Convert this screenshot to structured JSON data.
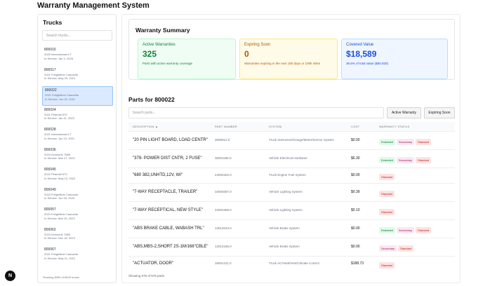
{
  "app": {
    "title": "Warranty Management System"
  },
  "sidebar": {
    "title": "Trucks",
    "search_placeholder": "Search trucks...",
    "footer": "Showing 8000 of 8000 trucks",
    "trucks": [
      {
        "id": "800016",
        "model": "2025 International ILT",
        "service": "In Service: Jan 2, 2025",
        "selected": false
      },
      {
        "id": "800017",
        "model": "2021 Freightliner Cascadia",
        "service": "In Service: May 29, 2021",
        "selected": false
      },
      {
        "id": "800022",
        "model": "2021 Freightliner Cascadia",
        "service": "In Service: Jun 22, 2021",
        "selected": true
      },
      {
        "id": "800024",
        "model": "2021 Peterbilt 579",
        "service": "In Service: Jan 11, 2023",
        "selected": false
      },
      {
        "id": "800028",
        "model": "2021 International ILT",
        "service": "In Service: Jun 13, 2021",
        "selected": false
      },
      {
        "id": "800036",
        "model": "2024 Kenworth T680",
        "service": "In Service: Mar 27, 2024",
        "selected": false
      },
      {
        "id": "800045",
        "model": "2022 Peterbilt 579",
        "service": "In Service: May 13, 2022",
        "selected": false
      },
      {
        "id": "800049",
        "model": "2023 Freightliner Cascadia",
        "service": "In Service: Jun 16, 2023",
        "selected": false
      },
      {
        "id": "800057",
        "model": "2023 Freightliner Cascadia",
        "service": "In Service: Mar 15, 2023",
        "selected": false
      },
      {
        "id": "800062",
        "model": "2023 Kenworth T680",
        "service": "In Service: Nov 16, 2023",
        "selected": false
      },
      {
        "id": "800067",
        "model": "2021 Freightliner Cascadia",
        "service": "In Service: May 21, 2021",
        "selected": false
      }
    ]
  },
  "summary": {
    "title": "Warranty Summary",
    "cards": [
      {
        "title": "Active Warranties",
        "value": "325",
        "desc": "Parts with active warranty coverage",
        "color": "#15803d"
      },
      {
        "title": "Expiring Soon",
        "value": "0",
        "desc": "Warranties expiring in the next 180 days or 100k miles",
        "color": "#b45309"
      },
      {
        "title": "Covered Value",
        "value": "$18,589",
        "desc": "36.6% of total value ($50,920)",
        "color": "#1d4ed8"
      }
    ]
  },
  "parts": {
    "title": "Parts for 800022",
    "search_placeholder": "Search parts...",
    "btn_active": "Active Warranty",
    "btn_expiring": "Expiring Soon",
    "footer": "Showing 578 of 578 parts",
    "columns": [
      "DESCRIPTION ▲",
      "PART NUMBER",
      "SYSTEM",
      "COST",
      "WARRANTY STATUS"
    ],
    "rows": [
      {
        "desc": "\"20 PIN LIGHT BOARD, LOAD CENTR\"",
        "pn": "3006012.0",
        "sys": "Truck Instrument/Gauge/Meter/Sensor System",
        "cost": "$0.00",
        "badges": [
          "Extended",
          "Secondary",
          "Standard"
        ]
      },
      {
        "desc": "\"379- POWER DIST CNTR, 2 FUSE\"",
        "pn": "35001188.0",
        "sys": "Vehicle Electrical Hardware",
        "cost": "$6.30",
        "badges": [
          "Extended",
          "Secondary",
          "Standard"
        ]
      },
      {
        "desc": "\"680 382,UNHTD,12V, WI\"",
        "pn": "44002262.0",
        "sys": "Truck Engine Fuel System",
        "cost": "$0.00",
        "badges": [
          "Standard"
        ]
      },
      {
        "desc": "\"7-WAY RECEPTACLE, TRAILER\"",
        "pn": "34004087.0",
        "sys": "Vehicle Lighting System",
        "cost": "$0.39",
        "badges": [
          "Standard"
        ]
      },
      {
        "desc": "\"7-WAY RECEPTICAL, NEW STYLE\"",
        "pn": "34004369.0",
        "sys": "Vehicle Lighting System",
        "cost": "$0.10",
        "badges": [
          "Standard"
        ]
      },
      {
        "desc": "\"ABS BRAKE CABLE, WABASH TRL\"",
        "pn": "13012043.0",
        "sys": "Vehicle Brake System",
        "cost": "$0.00",
        "badges": [
          "Extended",
          "Secondary",
          "Standard"
        ]
      },
      {
        "desc": "\"ABS,MBS-2,SHORT 2S-1M/168\"CBLE\"",
        "pn": "13012185.0",
        "sys": "Vehicle Brake System",
        "cost": "$0.00",
        "badges": [
          "Secondary",
          "Standard"
        ]
      },
      {
        "desc": "\"ACTUATOR, DOOR\"",
        "pn": "18001411.0",
        "sys": "Truck AC/Heat/Vent/Climate Control",
        "cost": "$188.73",
        "badges": [
          "Standard"
        ]
      }
    ]
  },
  "floating": {
    "label": "N"
  }
}
